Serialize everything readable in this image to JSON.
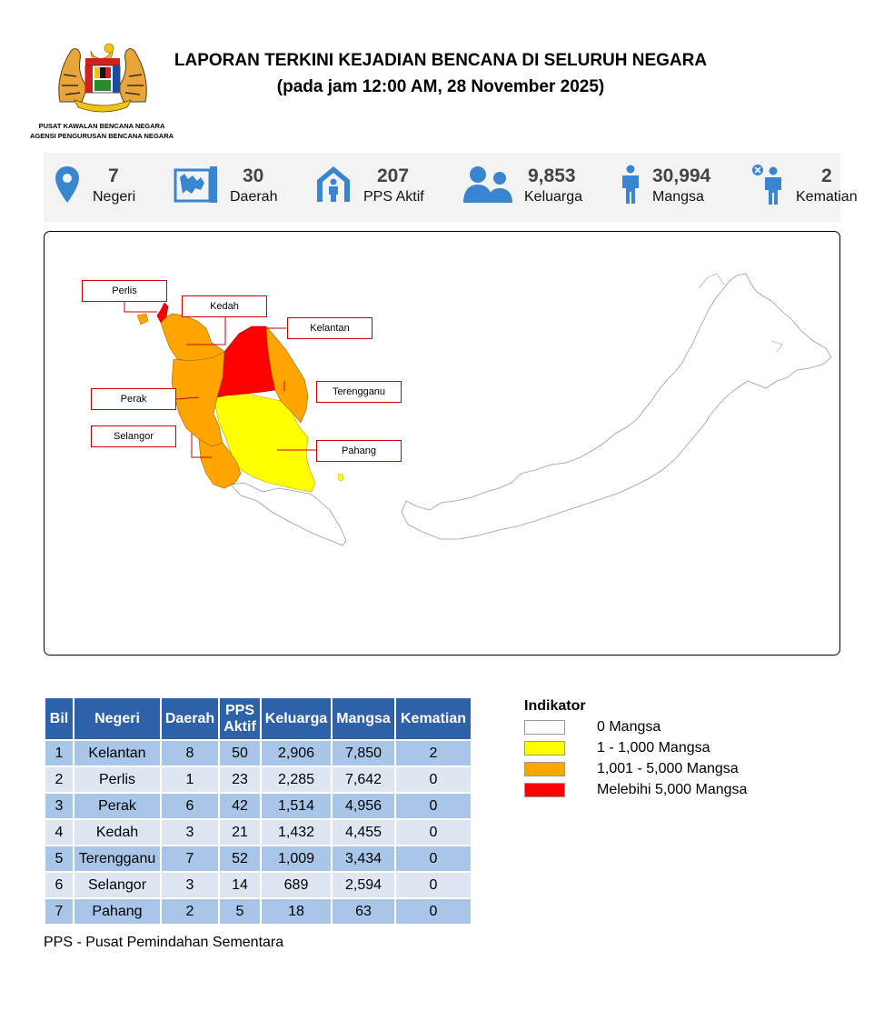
{
  "header": {
    "title": "LAPORAN TERKINI KEJADIAN BENCANA DI SELURUH NEGARA",
    "subtitle": "(pada jam 12:00 AM, 28 November 2025)",
    "agency_line1": "PUSAT KAWALAN BENCANA NEGARA",
    "agency_line2": "AGENSI PENGURUSAN BENCANA NEGARA",
    "emblem_icon": "malaysia-coat-of-arms-emblem"
  },
  "stats": [
    {
      "value": "7",
      "label": "Negeri",
      "icon": "location-pin-icon"
    },
    {
      "value": "30",
      "label": "Daerah",
      "icon": "district-map-icon"
    },
    {
      "value": "207",
      "label": "PPS Aktif",
      "icon": "shelter-icon"
    },
    {
      "value": "9,853",
      "label": "Keluarga",
      "icon": "family-icon"
    },
    {
      "value": "30,994",
      "label": "Mangsa",
      "icon": "person-icon"
    },
    {
      "value": "2",
      "label": "Kematian",
      "icon": "deceased-person-icon"
    }
  ],
  "map": {
    "labels": {
      "perlis": "Perlis",
      "kedah": "Kedah",
      "kelantan": "Kelantan",
      "terengganu": "Terengganu",
      "perak": "Perak",
      "selangor": "Selangor",
      "pahang": "Pahang"
    },
    "state_levels": {
      "Perlis": "Melebihi 5,000 Mangsa",
      "Kelantan": "Melebihi 5,000 Mangsa",
      "Kedah": "1,001 - 5,000 Mangsa",
      "Perak": "1,001 - 5,000 Mangsa",
      "Terengganu": "1,001 - 5,000 Mangsa",
      "Selangor": "1,001 - 5,000 Mangsa",
      "Pahang": "1 - 1,000 Mangsa"
    }
  },
  "table": {
    "headers": [
      "Bil",
      "Negeri",
      "Daerah",
      "PPS Aktif",
      "Keluarga",
      "Mangsa",
      "Kematian"
    ],
    "rows": [
      [
        "1",
        "Kelantan",
        "8",
        "50",
        "2,906",
        "7,850",
        "2"
      ],
      [
        "2",
        "Perlis",
        "1",
        "23",
        "2,285",
        "7,642",
        "0"
      ],
      [
        "3",
        "Perak",
        "6",
        "42",
        "1,514",
        "4,956",
        "0"
      ],
      [
        "4",
        "Kedah",
        "3",
        "21",
        "1,432",
        "4,455",
        "0"
      ],
      [
        "5",
        "Terengganu",
        "7",
        "52",
        "1,009",
        "3,434",
        "0"
      ],
      [
        "6",
        "Selangor",
        "3",
        "14",
        "689",
        "2,594",
        "0"
      ],
      [
        "7",
        "Pahang",
        "2",
        "5",
        "18",
        "63",
        "0"
      ]
    ]
  },
  "footnote": "PPS - Pusat Pemindahan Sementara",
  "legend": {
    "title": "Indikator",
    "items": [
      {
        "label": "0 Mangsa",
        "color": "#ffffff"
      },
      {
        "label": "1 - 1,000 Mangsa",
        "color": "#ffff00"
      },
      {
        "label": "1,001 - 5,000 Mangsa",
        "color": "#ffa500"
      },
      {
        "label": "Melebihi 5,000 Mangsa",
        "color": "#ff0000"
      }
    ]
  },
  "colors": {
    "header_blue": "#2d61a8",
    "row_odd": "#a9c6e8",
    "row_even": "#dde6f1",
    "icon_blue": "#3a85d0",
    "stat_value_grey": "#444444"
  }
}
